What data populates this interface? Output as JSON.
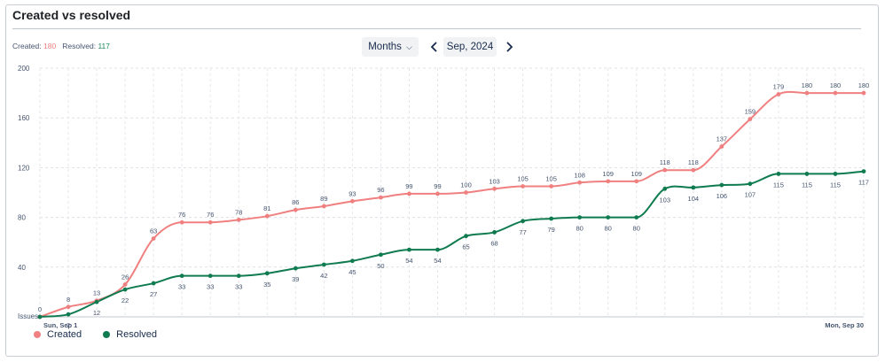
{
  "header": {
    "title": "Created vs resolved"
  },
  "totals": {
    "created_label": "Created:",
    "created_value": "180",
    "resolved_label": "Resolved:",
    "resolved_value": "117"
  },
  "controls": {
    "period_type": "Months",
    "period": "Sep, 2024"
  },
  "icons": {
    "period_dropdown": "chevron-down-icon",
    "prev": "chevron-left-icon",
    "next": "chevron-right-icon"
  },
  "colors": {
    "created": "#f08080",
    "resolved": "#0f7b4f"
  },
  "chart_data": {
    "type": "line",
    "ylabel": "Issues",
    "ylim": [
      0,
      200
    ],
    "yticks": [
      200,
      160,
      120,
      80,
      40
    ],
    "x_start_label": "Sun, Sep 1",
    "x_end_label": "Mon, Sep 30",
    "x": [
      1,
      2,
      3,
      4,
      5,
      6,
      7,
      8,
      9,
      10,
      11,
      12,
      13,
      14,
      15,
      16,
      17,
      18,
      19,
      20,
      21,
      22,
      23,
      24,
      25,
      26,
      27,
      28,
      29,
      30
    ],
    "series": [
      {
        "name": "Created",
        "color": "#f08080",
        "values": [
          0,
          8,
          13,
          26,
          63,
          76,
          76,
          78,
          81,
          86,
          89,
          93,
          96,
          99,
          99,
          100,
          103,
          105,
          105,
          108,
          109,
          109,
          118,
          118,
          137,
          159,
          179,
          180,
          180,
          180
        ]
      },
      {
        "name": "Resolved",
        "color": "#0f7b4f",
        "values": [
          0,
          2,
          12,
          22,
          27,
          33,
          33,
          33,
          35,
          39,
          42,
          45,
          50,
          54,
          54,
          65,
          68,
          77,
          79,
          80,
          80,
          80,
          103,
          104,
          106,
          107,
          115,
          115,
          115,
          117
        ]
      }
    ],
    "grid": true,
    "legend": "bottom-left"
  }
}
